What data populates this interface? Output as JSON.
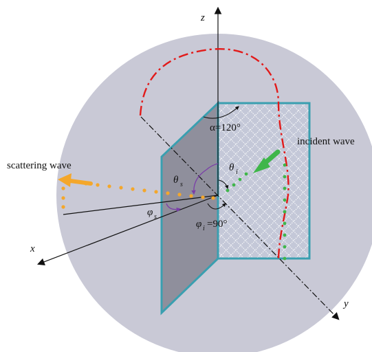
{
  "colors": {
    "sphere": "#c9c9d6",
    "plate_edge": "#3a9fb0",
    "plate_left_fill": "#8f8f9c",
    "plate_right_fill": "#c4c8d8",
    "arc_red": "#e21a1a",
    "incident_green": "#3fb64a",
    "scatter_orange": "#f4a72b",
    "angle_purple": "#7a3ea8",
    "axis": "#111111"
  },
  "labels": {
    "z_axis": "z",
    "x_axis": "x",
    "y_axis": "y",
    "alpha_angle": "α=120°",
    "incident_wave": "incident wave",
    "scattering_wave": "scattering wave",
    "theta_s": "θ",
    "theta_s_sub": "s",
    "theta_i": "θ",
    "theta_i_sub": "i",
    "phi_s": "φ",
    "phi_s_sub": "s",
    "phi_i": "φ",
    "phi_i_sub": "i",
    "phi_i_value": "=90°"
  },
  "icons": [
    "arrow-icon"
  ]
}
